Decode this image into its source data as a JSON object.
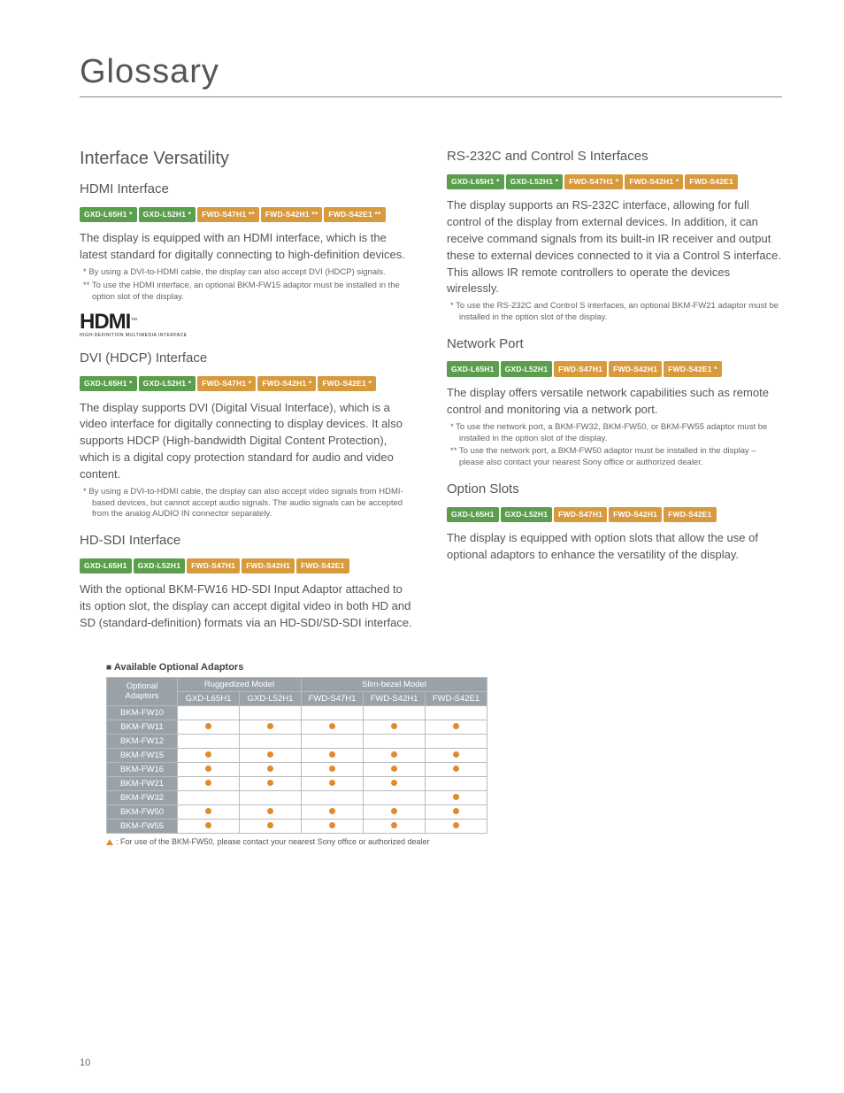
{
  "pageTitle": "Glossary",
  "pageNumber": "10",
  "colors": {
    "tagGreen": "#5b9e4d",
    "tagOrange": "#d89a3f",
    "dotOrange": "#e08b2c",
    "triOrange": "#e08b2c"
  },
  "left": {
    "mainHeading": "Interface Versatility",
    "sections": [
      {
        "title": "HDMI Interface",
        "tags": [
          {
            "text": "GXD-L65H1 *",
            "color": "#5b9e4d"
          },
          {
            "text": "GXD-L52H1 *",
            "color": "#5b9e4d"
          },
          {
            "text": "FWD-S47H1 **",
            "color": "#d89a3f"
          },
          {
            "text": "FWD-S42H1 **",
            "color": "#d89a3f"
          },
          {
            "text": "FWD-S42E1 **",
            "color": "#d89a3f"
          }
        ],
        "body": "The display is equipped with an HDMI interface, which is the latest standard for digitally connecting to high-definition devices.",
        "notes": [
          "* By using a DVI-to-HDMI cable, the display can also accept DVI (HDCP) signals.",
          "** To use the HDMI interface, an optional BKM-FW15 adaptor must be installed in the option slot of the display."
        ],
        "logo": true
      },
      {
        "title": "DVI (HDCP) Interface",
        "tags": [
          {
            "text": "GXD-L65H1 *",
            "color": "#5b9e4d"
          },
          {
            "text": "GXD-L52H1 *",
            "color": "#5b9e4d"
          },
          {
            "text": "FWD-S47H1 *",
            "color": "#d89a3f"
          },
          {
            "text": "FWD-S42H1 *",
            "color": "#d89a3f"
          },
          {
            "text": "FWD-S42E1 *",
            "color": "#d89a3f"
          }
        ],
        "body": "The display supports DVI (Digital Visual Interface), which is a video interface for digitally connecting to display devices.  It also supports HDCP (High-bandwidth Digital Content Protection), which is a digital copy protection standard for audio and video content.",
        "notes": [
          "* By using a DVI-to-HDMI cable, the display can also accept video signals from HDMI-based devices, but cannot accept audio signals. The audio signals can be accepted from the analog AUDIO IN connector separately."
        ]
      },
      {
        "title": "HD-SDI Interface",
        "tags": [
          {
            "text": "GXD-L65H1",
            "color": "#5b9e4d"
          },
          {
            "text": "GXD-L52H1",
            "color": "#5b9e4d"
          },
          {
            "text": "FWD-S47H1",
            "color": "#d89a3f"
          },
          {
            "text": "FWD-S42H1",
            "color": "#d89a3f"
          },
          {
            "text": "FWD-S42E1",
            "color": "#d89a3f"
          }
        ],
        "body": "With the optional BKM-FW16 HD-SDI Input Adaptor attached to its option slot, the display can accept digital video in both HD and SD (standard-definition) formats via an HD-SDI/SD-SDI interface.",
        "notes": []
      }
    ]
  },
  "right": {
    "sections": [
      {
        "title": "RS-232C and Control S Interfaces",
        "tags": [
          {
            "text": "GXD-L65H1 *",
            "color": "#5b9e4d"
          },
          {
            "text": "GXD-L52H1 *",
            "color": "#5b9e4d"
          },
          {
            "text": "FWD-S47H1 *",
            "color": "#d89a3f"
          },
          {
            "text": "FWD-S42H1 *",
            "color": "#d89a3f"
          },
          {
            "text": "FWD-S42E1",
            "color": "#d89a3f"
          }
        ],
        "body": "The display supports an RS-232C interface, allowing for full control of the display from external devices. In addition, it can receive command signals from its built-in IR receiver and output these to external devices connected to it via a Control S interface. This allows IR remote controllers to operate the devices wirelessly.",
        "notes": [
          "* To use the RS-232C and Control S interfaces, an optional BKM-FW21 adaptor must be installed in the option slot of the display."
        ]
      },
      {
        "title": "Network Port",
        "tags": [
          {
            "text": "GXD-L65H1",
            "color": "#5b9e4d"
          },
          {
            "text": "GXD-L52H1",
            "color": "#5b9e4d"
          },
          {
            "text": "FWD-S47H1",
            "color": "#d89a3f"
          },
          {
            "text": "FWD-S42H1",
            "color": "#d89a3f"
          },
          {
            "text": "FWD-S42E1 *",
            "color": "#d89a3f"
          }
        ],
        "body": "The display offers versatile network capabilities such as remote control and monitoring via a network port.",
        "notes": [
          "* To use the network port, a BKM-FW32, BKM-FW50, or BKM-FW55 adaptor must be installed in the option slot of the display.",
          "** To use the network port, a BKM-FW50 adaptor must be installed in the display – please also contact your nearest Sony office or authorized dealer."
        ]
      },
      {
        "title": "Option Slots",
        "tags": [
          {
            "text": "GXD-L65H1",
            "color": "#5b9e4d"
          },
          {
            "text": "GXD-L52H1",
            "color": "#5b9e4d"
          },
          {
            "text": "FWD-S47H1",
            "color": "#d89a3f"
          },
          {
            "text": "FWD-S42H1",
            "color": "#d89a3f"
          },
          {
            "text": "FWD-S42E1",
            "color": "#d89a3f"
          }
        ],
        "body": "The display is equipped with option slots that allow the use of optional adaptors to enhance the versatility of the display.",
        "notes": []
      }
    ]
  },
  "table": {
    "title": "Available Optional Adaptors",
    "groupHeaders": [
      "Ruggedized Model",
      "Slim-bezel Model"
    ],
    "cornerLabel": "Optional Adaptors",
    "columns": [
      "GXD-L65H1",
      "GXD-L52H1",
      "FWD-S47H1",
      "FWD-S42H1",
      "FWD-S42E1"
    ],
    "rows": [
      {
        "name": "BKM-FW10",
        "cells": [
          "",
          "",
          "",
          "",
          ""
        ]
      },
      {
        "name": "BKM-FW11",
        "cells": [
          "dot",
          "dot",
          "dot",
          "dot",
          "dot"
        ]
      },
      {
        "name": "BKM-FW12",
        "cells": [
          "",
          "",
          "",
          "",
          ""
        ]
      },
      {
        "name": "BKM-FW15",
        "cells": [
          "dot",
          "dot",
          "dot",
          "dot",
          "dot"
        ]
      },
      {
        "name": "BKM-FW16",
        "cells": [
          "dot",
          "dot",
          "dot",
          "dot",
          "dot"
        ]
      },
      {
        "name": "BKM-FW21",
        "cells": [
          "dot",
          "dot",
          "dot",
          "dot",
          ""
        ]
      },
      {
        "name": "BKM-FW32",
        "cells": [
          "",
          "",
          "",
          "",
          "dot"
        ]
      },
      {
        "name": "BKM-FW50",
        "cells": [
          "dot",
          "dot",
          "dot",
          "dot",
          "dot"
        ]
      },
      {
        "name": "BKM-FW55",
        "cells": [
          "dot",
          "dot",
          "dot",
          "dot",
          "dot"
        ]
      }
    ],
    "footnote": ": For use of the BKM-FW50, please contact your nearest Sony office or authorized dealer"
  },
  "hdmiLogo": {
    "main": "HDMI",
    "sub": "HIGH-DEFINITION MULTIMEDIA INTERFACE",
    "tm": "™"
  }
}
